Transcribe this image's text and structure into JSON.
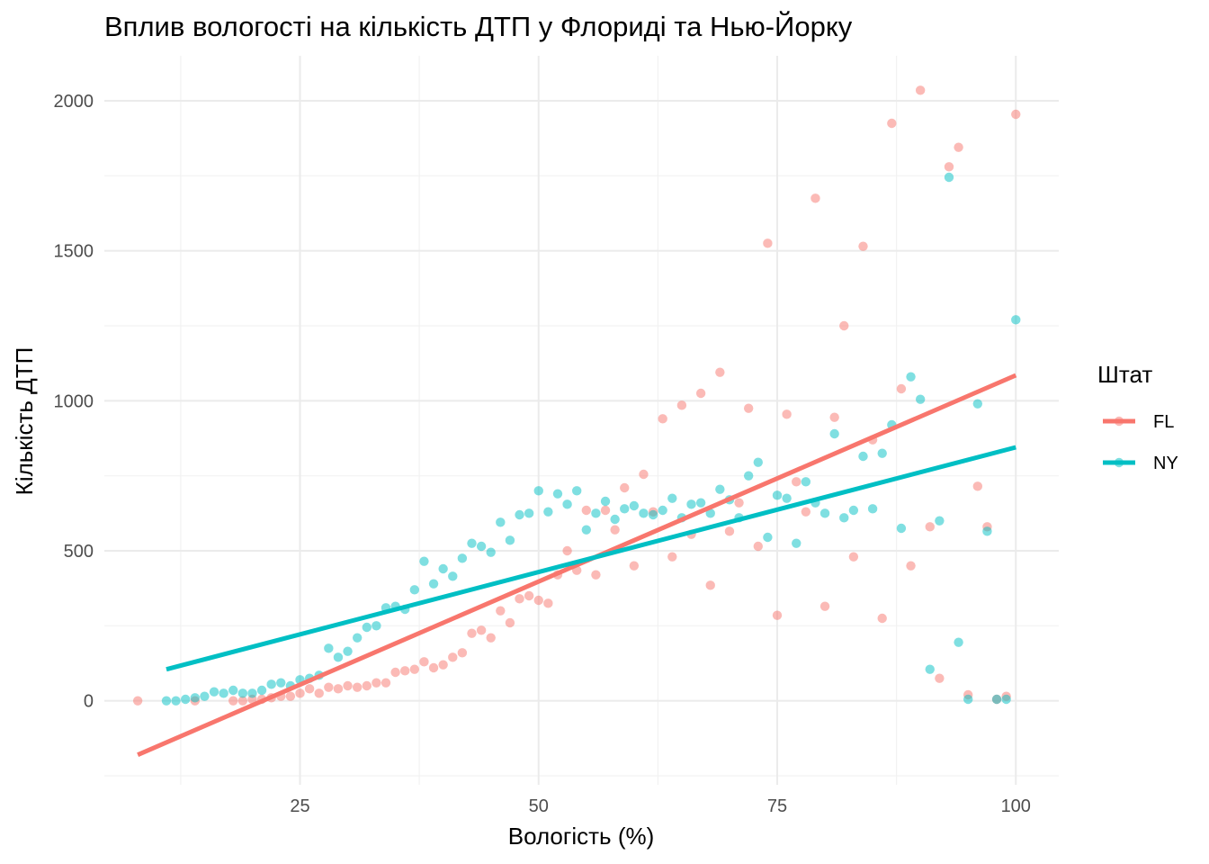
{
  "chart_data": {
    "type": "scatter",
    "title": "Вплив вологості на кількість ДТП у Флориді та Нью-Йорку",
    "xlabel": "Вологість (%)",
    "ylabel": "Кількість ДТП",
    "xlim": [
      4.5,
      104.5
    ],
    "ylim": [
      -280,
      2150
    ],
    "x_ticks": [
      25,
      50,
      75,
      100
    ],
    "y_ticks": [
      0,
      500,
      1000,
      1500,
      2000
    ],
    "grid": true,
    "legend": {
      "title": "Штат",
      "position": "right"
    },
    "series": [
      {
        "name": "FL",
        "color": "#F8766D",
        "points": [
          [
            8,
            0
          ],
          [
            14,
            0
          ],
          [
            18,
            0
          ],
          [
            19,
            0
          ],
          [
            20,
            5
          ],
          [
            21,
            5
          ],
          [
            22,
            10
          ],
          [
            23,
            15
          ],
          [
            24,
            15
          ],
          [
            25,
            25
          ],
          [
            26,
            40
          ],
          [
            27,
            25
          ],
          [
            28,
            45
          ],
          [
            29,
            40
          ],
          [
            30,
            50
          ],
          [
            31,
            45
          ],
          [
            32,
            50
          ],
          [
            33,
            60
          ],
          [
            34,
            60
          ],
          [
            35,
            95
          ],
          [
            36,
            100
          ],
          [
            37,
            105
          ],
          [
            38,
            130
          ],
          [
            39,
            110
          ],
          [
            40,
            120
          ],
          [
            41,
            145
          ],
          [
            42,
            160
          ],
          [
            43,
            225
          ],
          [
            44,
            235
          ],
          [
            45,
            210
          ],
          [
            46,
            300
          ],
          [
            47,
            260
          ],
          [
            48,
            340
          ],
          [
            49,
            350
          ],
          [
            50,
            335
          ],
          [
            51,
            325
          ],
          [
            52,
            420
          ],
          [
            53,
            500
          ],
          [
            54,
            435
          ],
          [
            55,
            635
          ],
          [
            56,
            420
          ],
          [
            57,
            635
          ],
          [
            58,
            570
          ],
          [
            59,
            710
          ],
          [
            60,
            450
          ],
          [
            61,
            755
          ],
          [
            62,
            630
          ],
          [
            63,
            940
          ],
          [
            64,
            480
          ],
          [
            65,
            985
          ],
          [
            66,
            555
          ],
          [
            67,
            1025
          ],
          [
            68,
            385
          ],
          [
            69,
            1095
          ],
          [
            70,
            565
          ],
          [
            71,
            660
          ],
          [
            72,
            975
          ],
          [
            73,
            515
          ],
          [
            74,
            1525
          ],
          [
            75,
            285
          ],
          [
            76,
            955
          ],
          [
            77,
            730
          ],
          [
            78,
            630
          ],
          [
            79,
            1675
          ],
          [
            80,
            315
          ],
          [
            81,
            945
          ],
          [
            82,
            1250
          ],
          [
            83,
            480
          ],
          [
            84,
            1515
          ],
          [
            85,
            870
          ],
          [
            86,
            275
          ],
          [
            87,
            1925
          ],
          [
            88,
            1040
          ],
          [
            89,
            450
          ],
          [
            90,
            2035
          ],
          [
            91,
            580
          ],
          [
            92,
            75
          ],
          [
            93,
            1780
          ],
          [
            94,
            1845
          ],
          [
            95,
            20
          ],
          [
            96,
            715
          ],
          [
            97,
            580
          ],
          [
            98,
            5
          ],
          [
            99,
            15
          ],
          [
            100,
            1955
          ]
        ],
        "trend": [
          [
            8,
            -180
          ],
          [
            100,
            1085
          ]
        ]
      },
      {
        "name": "NY",
        "color": "#00BFC4",
        "points": [
          [
            11,
            0
          ],
          [
            12,
            0
          ],
          [
            13,
            5
          ],
          [
            14,
            10
          ],
          [
            15,
            15
          ],
          [
            16,
            30
          ],
          [
            17,
            25
          ],
          [
            18,
            35
          ],
          [
            19,
            25
          ],
          [
            20,
            25
          ],
          [
            21,
            35
          ],
          [
            22,
            55
          ],
          [
            23,
            60
          ],
          [
            24,
            50
          ],
          [
            25,
            70
          ],
          [
            26,
            75
          ],
          [
            27,
            85
          ],
          [
            28,
            175
          ],
          [
            29,
            145
          ],
          [
            30,
            165
          ],
          [
            31,
            210
          ],
          [
            32,
            245
          ],
          [
            33,
            250
          ],
          [
            34,
            310
          ],
          [
            35,
            315
          ],
          [
            36,
            305
          ],
          [
            37,
            370
          ],
          [
            38,
            465
          ],
          [
            39,
            390
          ],
          [
            40,
            440
          ],
          [
            41,
            415
          ],
          [
            42,
            475
          ],
          [
            43,
            525
          ],
          [
            44,
            515
          ],
          [
            45,
            495
          ],
          [
            46,
            595
          ],
          [
            47,
            535
          ],
          [
            48,
            620
          ],
          [
            49,
            625
          ],
          [
            50,
            700
          ],
          [
            51,
            630
          ],
          [
            52,
            690
          ],
          [
            53,
            655
          ],
          [
            54,
            700
          ],
          [
            55,
            570
          ],
          [
            56,
            625
          ],
          [
            57,
            665
          ],
          [
            58,
            605
          ],
          [
            59,
            640
          ],
          [
            60,
            650
          ],
          [
            61,
            625
          ],
          [
            62,
            620
          ],
          [
            63,
            635
          ],
          [
            64,
            675
          ],
          [
            65,
            610
          ],
          [
            66,
            655
          ],
          [
            67,
            660
          ],
          [
            68,
            625
          ],
          [
            69,
            705
          ],
          [
            70,
            670
          ],
          [
            71,
            610
          ],
          [
            72,
            750
          ],
          [
            73,
            795
          ],
          [
            74,
            545
          ],
          [
            75,
            685
          ],
          [
            76,
            675
          ],
          [
            77,
            525
          ],
          [
            78,
            730
          ],
          [
            79,
            660
          ],
          [
            80,
            625
          ],
          [
            81,
            890
          ],
          [
            82,
            610
          ],
          [
            83,
            635
          ],
          [
            84,
            815
          ],
          [
            85,
            640
          ],
          [
            86,
            825
          ],
          [
            87,
            920
          ],
          [
            88,
            575
          ],
          [
            89,
            1080
          ],
          [
            90,
            1005
          ],
          [
            91,
            105
          ],
          [
            92,
            600
          ],
          [
            93,
            1745
          ],
          [
            94,
            195
          ],
          [
            95,
            5
          ],
          [
            96,
            990
          ],
          [
            97,
            565
          ],
          [
            98,
            5
          ],
          [
            99,
            5
          ],
          [
            100,
            1270
          ]
        ],
        "trend": [
          [
            11,
            105
          ],
          [
            100,
            845
          ]
        ]
      }
    ]
  }
}
